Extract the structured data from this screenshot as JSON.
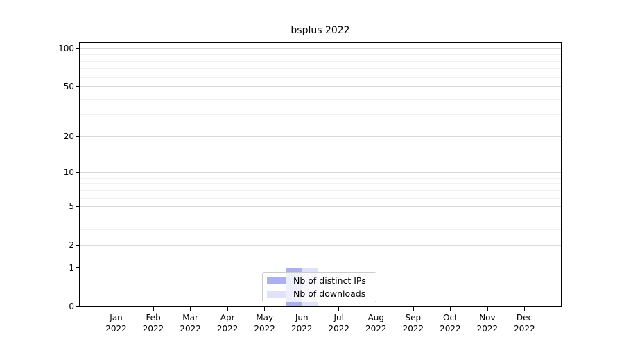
{
  "chart_data": {
    "type": "bar",
    "title": "bsplus 2022",
    "x_tick_months": [
      "Jan",
      "Feb",
      "Mar",
      "Apr",
      "May",
      "Jun",
      "Jul",
      "Aug",
      "Sep",
      "Oct",
      "Nov",
      "Dec"
    ],
    "x_tick_year": "2022",
    "series": [
      {
        "name": "Nb of distinct IPs",
        "color": "#abb1ef",
        "values": [
          0,
          0,
          0,
          0,
          0,
          1,
          0,
          0,
          0,
          0,
          0,
          0
        ]
      },
      {
        "name": "Nb of downloads",
        "color": "#dfe2f9",
        "values": [
          0,
          0,
          0,
          0,
          0,
          1,
          0,
          0,
          0,
          0,
          0,
          0
        ]
      }
    ],
    "yscale": "log1p",
    "y_major_ticks": [
      0,
      1,
      2,
      5,
      10,
      20,
      50,
      100
    ],
    "y_minor_ticks": [
      3,
      4,
      6,
      7,
      8,
      9,
      30,
      40,
      60,
      70,
      80,
      90
    ],
    "ylim": [
      0,
      112
    ],
    "grid": "horizontal",
    "legend_position": "lower center",
    "colors": {
      "major_grid": "#d9d9d9",
      "minor_grid": "#f0f0f0",
      "axis": "#000000",
      "text": "#000000"
    }
  }
}
